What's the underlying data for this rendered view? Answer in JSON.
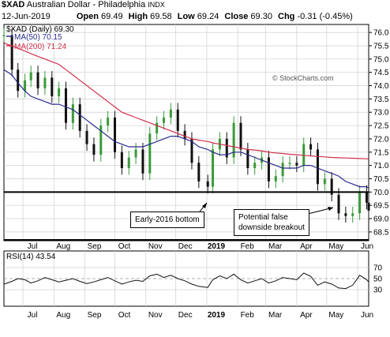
{
  "header": {
    "symbol": "$XAD",
    "name": "Australian Dollar - Philadelphia",
    "exchange": "INDX",
    "date": "12-Jun-2019",
    "open_label": "Open",
    "open": "69.49",
    "high_label": "High",
    "high": "69.58",
    "low_label": "Low",
    "low": "69.24",
    "close_label": "Close",
    "close": "69.30",
    "chg_label": "Chg",
    "chg": "-0.31 (-0.45%)"
  },
  "watermark": "© StockCharts.com",
  "legend": {
    "price": "$XAD (Daily) 69.30",
    "ma50": "MA(50) 70.15",
    "ma200": "MA(200) 71.24"
  },
  "rsi_label": "RSI(14) 43.54",
  "annotations": {
    "bottom": "Early-2016 bottom",
    "breakout_line1": "Potential false",
    "breakout_line2": "downside breakout"
  },
  "colors": {
    "up": "#3a9a3a",
    "down": "#111111",
    "ma50": "#2b2b8f",
    "ma200": "#d0304a",
    "rsi": "#111111",
    "grid": "#cfcfcf"
  },
  "chart_data": {
    "type": "line",
    "title": "$XAD Australian Dollar - Philadelphia",
    "y_ticks": [
      68.5,
      69.0,
      69.5,
      70.0,
      70.5,
      71.0,
      71.5,
      72.0,
      72.5,
      73.0,
      73.5,
      74.0,
      74.5,
      75.0,
      75.5,
      76.0
    ],
    "y_tick_labels": [
      "68.5",
      "69.0",
      "69.5",
      "70.0",
      "70.5",
      "71.0",
      "71.5",
      "72.0",
      "72.5",
      "73.0",
      "73.5",
      "74.0",
      "74.5",
      "75.0",
      "75.5",
      "76.0"
    ],
    "ylim": [
      68.2,
      76.3
    ],
    "x_labels": [
      "Jul",
      "Aug",
      "Sep",
      "Oct",
      "Nov",
      "Dec",
      "2019",
      "Feb",
      "Mar",
      "Apr",
      "May",
      "Jun"
    ],
    "support_level": 70.0,
    "x_range": [
      "2018-06-12",
      "2019-06-12"
    ],
    "x_label_dates": [
      "2018-07-01",
      "2018-08-01",
      "2018-09-01",
      "2018-10-01",
      "2018-11-01",
      "2018-12-01",
      "2019-01-01",
      "2019-02-01",
      "2019-03-01",
      "2019-04-01",
      "2019-05-01",
      "2019-06-01"
    ],
    "price": {
      "x": [
        "2018-06-12",
        "2018-06-20",
        "2018-06-26",
        "2018-07-03",
        "2018-07-09",
        "2018-07-16",
        "2018-07-23",
        "2018-07-30",
        "2018-08-06",
        "2018-08-13",
        "2018-08-20",
        "2018-08-27",
        "2018-09-03",
        "2018-09-10",
        "2018-09-17",
        "2018-09-24",
        "2018-10-01",
        "2018-10-08",
        "2018-10-15",
        "2018-10-22",
        "2018-10-29",
        "2018-11-05",
        "2018-11-12",
        "2018-11-19",
        "2018-11-26",
        "2018-12-03",
        "2018-12-10",
        "2018-12-17",
        "2018-12-24",
        "2019-01-02",
        "2019-01-07",
        "2019-01-14",
        "2019-01-21",
        "2019-01-28",
        "2019-02-04",
        "2019-02-11",
        "2019-02-18",
        "2019-02-25",
        "2019-03-04",
        "2019-03-11",
        "2019-03-18",
        "2019-03-25",
        "2019-04-01",
        "2019-04-08",
        "2019-04-15",
        "2019-04-22",
        "2019-04-29",
        "2019-05-06",
        "2019-05-13",
        "2019-05-20",
        "2019-05-27",
        "2019-06-03",
        "2019-06-10",
        "2019-06-12"
      ],
      "values": [
        75.9,
        74.6,
        73.8,
        74.2,
        74.5,
        73.9,
        74.3,
        73.6,
        73.9,
        72.6,
        73.3,
        72.3,
        71.8,
        71.4,
        72.5,
        72.8,
        71.5,
        70.9,
        71.3,
        71.6,
        70.7,
        72.2,
        72.6,
        72.8,
        73.1,
        72.3,
        72.0,
        71.1,
        70.4,
        70.2,
        71.6,
        72.0,
        71.3,
        72.6,
        71.6,
        70.9,
        71.1,
        71.3,
        70.4,
        70.6,
        71.1,
        71.1,
        71.0,
        71.8,
        71.6,
        70.3,
        70.5,
        69.9,
        69.2,
        69.1,
        69.2,
        70.0,
        69.6,
        69.3
      ]
    },
    "series": [
      {
        "name": "MA(50)",
        "values": [
          74.6,
          74.4,
          74.1,
          73.8,
          73.6,
          73.5,
          73.4,
          73.3,
          73.3,
          73.2,
          73.1,
          72.9,
          72.7,
          72.5,
          72.3,
          72.1,
          71.9,
          71.8,
          71.7,
          71.7,
          71.7,
          71.8,
          71.9,
          72.0,
          72.1,
          72.1,
          72.0,
          71.9,
          71.7,
          71.6,
          71.5,
          71.4,
          71.4,
          71.5,
          71.5,
          71.4,
          71.3,
          71.2,
          71.1,
          71.0,
          70.9,
          70.9,
          70.9,
          71.0,
          71.0,
          70.9,
          70.8,
          70.7,
          70.6,
          70.4,
          70.3,
          70.2,
          70.2,
          70.15
        ]
      },
      {
        "name": "MA(200)",
        "values": [
          75.6,
          75.5,
          75.4,
          75.3,
          75.2,
          75.1,
          75.0,
          74.9,
          74.8,
          74.6,
          74.4,
          74.2,
          74.0,
          73.8,
          73.6,
          73.4,
          73.2,
          73.0,
          72.9,
          72.8,
          72.7,
          72.6,
          72.5,
          72.4,
          72.3,
          72.2,
          72.1,
          72.0,
          71.95,
          71.9,
          71.85,
          71.8,
          71.75,
          71.7,
          71.65,
          71.6,
          71.58,
          71.55,
          71.5,
          71.47,
          71.45,
          71.42,
          71.4,
          71.38,
          71.36,
          71.34,
          71.32,
          71.3,
          71.29,
          71.28,
          71.27,
          71.26,
          71.25,
          71.24
        ]
      }
    ],
    "rsi": {
      "name": "RSI(14)",
      "y_ticks": [
        30,
        50,
        70
      ],
      "ylim": [
        0,
        100
      ],
      "values": [
        40,
        45,
        50,
        48,
        42,
        46,
        52,
        48,
        44,
        47,
        50,
        45,
        41,
        44,
        48,
        52,
        46,
        40,
        44,
        47,
        45,
        55,
        58,
        52,
        56,
        50,
        46,
        40,
        36,
        34,
        48,
        55,
        50,
        58,
        48,
        42,
        46,
        50,
        42,
        46,
        52,
        50,
        48,
        60,
        54,
        38,
        44,
        40,
        33,
        32,
        38,
        56,
        48,
        44
      ]
    }
  }
}
